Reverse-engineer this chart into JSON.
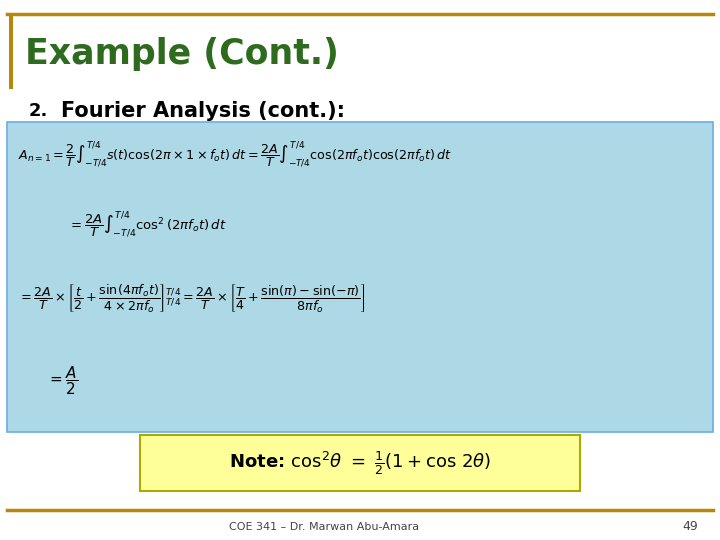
{
  "title": "Example (Cont.)",
  "title_color": "#2E6B1E",
  "subtitle_number": "2.",
  "subtitle": "Fourier Analysis (cont.):",
  "subtitle_color": "#000000",
  "bg_color": "#FFFFFF",
  "blue_box_color": "#ADD8E6",
  "blue_box_border": "#6AADE4",
  "yellow_box_color": "#FFFF99",
  "yellow_box_border": "#CCCC00",
  "gold_line_color": "#B8860B",
  "footer_text": "COE 341 – Dr. Marwan Abu-Amara",
  "page_number": "49"
}
